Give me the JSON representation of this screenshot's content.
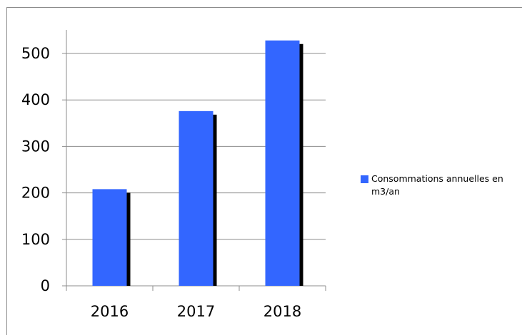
{
  "chart_data": {
    "type": "bar",
    "categories": [
      "2016",
      "2017",
      "2018"
    ],
    "series": [
      {
        "name": "Consommations annuelles en m3/an",
        "values": [
          208,
          376,
          528
        ],
        "color": "#3366ff"
      }
    ],
    "title": "",
    "xlabel": "",
    "ylabel": "",
    "ylim": [
      0,
      500
    ],
    "yticks": [
      "0",
      "100",
      "200",
      "300",
      "400",
      "500"
    ],
    "grid": true,
    "legend_position": "right",
    "shadow_color": "#000000"
  }
}
